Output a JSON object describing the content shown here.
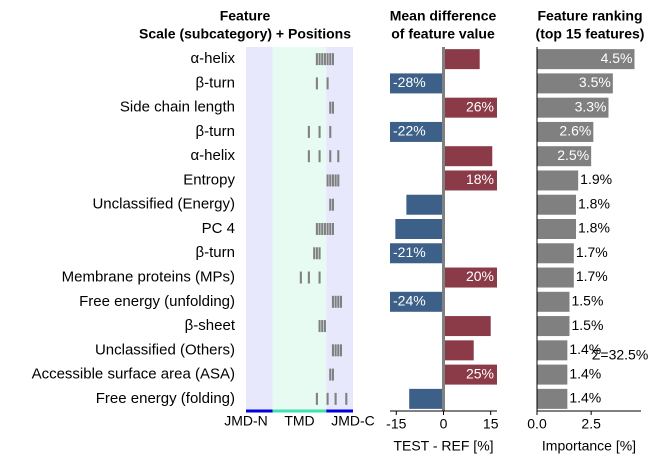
{
  "chart_data": [
    {
      "type": "position_map",
      "title": [
        "Feature",
        "Scale (subcategory)  +  Positions"
      ],
      "categories": [
        "α-helix",
        "β-turn",
        "Side chain length",
        "β-turn",
        "α-helix",
        "Entropy",
        "Unclassified (Energy)",
        "PC 4",
        "β-turn",
        "Membrane proteins (MPs)",
        "Free energy (unfolding)",
        "β-sheet",
        "Unclassified (Others)",
        "Accessible surface area (ASA)",
        "Free energy (folding)"
      ],
      "positions": [
        [
          27,
          28,
          29,
          30,
          31,
          32,
          33
        ],
        [
          27,
          31
        ],
        [
          32,
          33
        ],
        [
          24,
          28,
          32
        ],
        [
          24,
          28,
          32,
          35
        ],
        [
          31,
          32,
          33,
          34,
          35
        ],
        [
          32,
          33
        ],
        [
          27,
          28,
          29,
          30,
          31,
          32,
          33
        ],
        [
          26,
          27,
          28
        ],
        [
          21,
          24,
          28
        ],
        [
          33,
          34,
          35,
          36
        ],
        [
          28,
          29,
          30
        ],
        [
          33,
          34,
          35,
          36
        ],
        [
          32,
          33
        ],
        [
          27,
          31,
          34,
          38
        ]
      ],
      "xlim": [
        0,
        40
      ],
      "color": "#808080",
      "regions": [
        {
          "label": "JMD-N",
          "start": 0,
          "end": 10,
          "color": "#e8e8fc",
          "line_color": "#0000e0"
        },
        {
          "label": "TMD",
          "start": 10,
          "end": 30,
          "color": "#e8fbf3",
          "line_color": "#40e0b0"
        },
        {
          "label": "JMD-C",
          "start": 30,
          "end": 40,
          "color": "#e8e8fc",
          "line_color": "#0000e0"
        }
      ]
    },
    {
      "type": "diverging_bar",
      "title": [
        "Mean difference",
        "of feature value"
      ],
      "values": [
        11.5,
        -28,
        26,
        -22,
        15.5,
        18,
        -11.8,
        -15.3,
        -21,
        20,
        -24,
        15,
        9.6,
        25,
        -10.9
      ],
      "value_labels": [
        null,
        "-28%",
        "26%",
        "-22%",
        null,
        "18%",
        null,
        null,
        "-21%",
        "20%",
        "-24%",
        null,
        null,
        "25%",
        null
      ],
      "positive_color": "#8b3a47",
      "negative_color": "#3d6089",
      "xlim": [
        -17,
        17
      ],
      "xticks": [
        -15,
        0,
        15
      ],
      "xlabel": "TEST - REF [%]"
    },
    {
      "type": "hbar",
      "title": [
        "Feature ranking",
        "(top 15 features)"
      ],
      "values": [
        4.5,
        3.5,
        3.3,
        2.6,
        2.5,
        1.9,
        1.8,
        1.8,
        1.7,
        1.7,
        1.5,
        1.5,
        1.4,
        1.4,
        1.4
      ],
      "value_labels": [
        "4.5%",
        "3.5%",
        "3.3%",
        "2.6%",
        "2.5%",
        "1.9%",
        "1.8%",
        "1.8%",
        "1.7%",
        "1.7%",
        "1.5%",
        "1.5%",
        "1.4%",
        "1.4%",
        "1.4%"
      ],
      "color": "#808080",
      "xlim": [
        0,
        4.8
      ],
      "xticks": [
        {
          "value": 0,
          "label": "0.0"
        },
        2.5
      ],
      "xlabel": "Importance [%]",
      "annotation": "Σ=32.5%"
    }
  ]
}
